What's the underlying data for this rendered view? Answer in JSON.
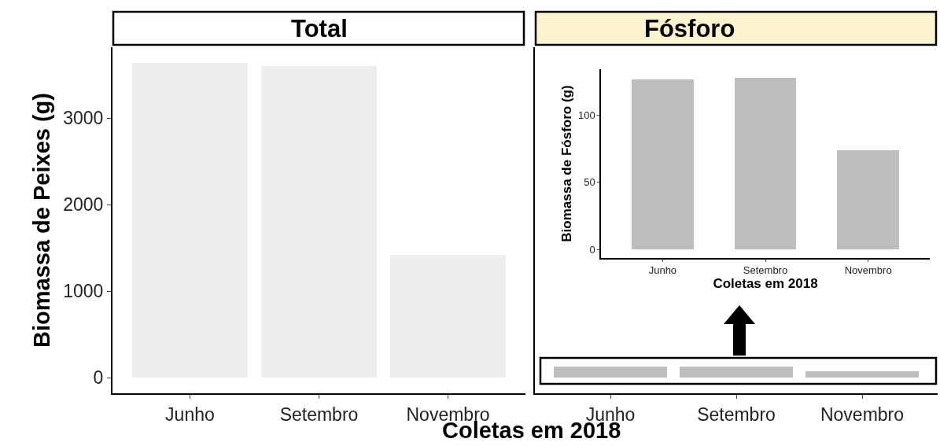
{
  "chart_data": [
    {
      "type": "bar",
      "title": "Total",
      "categories": [
        "Junho",
        "Setembro",
        "Novembro"
      ],
      "values": [
        3640,
        3600,
        1420
      ],
      "color": "#eeeeee",
      "xlabel": "Coletas em 2018",
      "ylabel": "Biomassa de Peixes (g)",
      "ylim": [
        -182,
        3822
      ],
      "yticks": [
        0,
        1000,
        2000,
        3000
      ]
    },
    {
      "type": "bar",
      "title": "Fósforo",
      "categories": [
        "Junho",
        "Setembro",
        "Novembro"
      ],
      "values": [
        127,
        128,
        74
      ],
      "color": "#bebebe",
      "ylim": [
        -182,
        3822
      ],
      "tick_labels": "x"
    },
    {
      "type": "bar",
      "categories": [
        "Junho",
        "Setembro",
        "Novembro"
      ],
      "values": [
        127,
        128,
        74
      ],
      "color": "#bebebe",
      "xlabel": "Coletas em 2018",
      "ylabel": "Biomassa de Fósforo (g)",
      "ylim": [
        -6.4,
        134.4
      ],
      "yticks": [
        0,
        50,
        100
      ]
    }
  ]
}
